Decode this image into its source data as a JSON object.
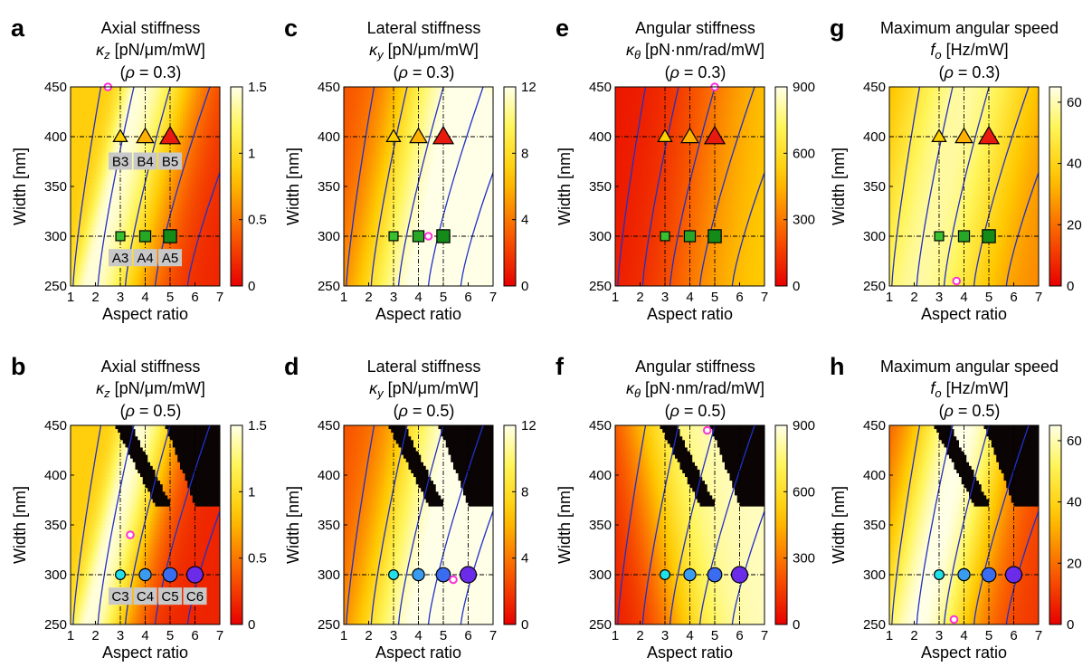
{
  "chart_data": [
    {
      "id": "a",
      "title": "Axial stiffness",
      "subtitle": "κz [pN/μm/mW]",
      "condition": "(ρ = 0.3)",
      "quantity": "axial",
      "rho": 0.3,
      "black_region": false,
      "type": "heatmap",
      "xlabel": "Aspect ratio",
      "ylabel": "Width [nm]",
      "xlim": [
        1,
        7
      ],
      "ylim": [
        250,
        450
      ],
      "xticks": [
        "1",
        "2",
        "3",
        "4",
        "5",
        "6",
        "7"
      ],
      "yticks": [
        "250",
        "300",
        "350",
        "400",
        "450"
      ],
      "colorbar": {
        "range": [
          0,
          1.5
        ],
        "ticks": [
          "0",
          "0.5",
          "1",
          "1.5"
        ],
        "colormap": "hot-to-white"
      },
      "markers": [
        {
          "x": 3,
          "y": 400,
          "shape": "triangle",
          "color": "#ffd000",
          "size": 9
        },
        {
          "x": 4,
          "y": 400,
          "shape": "triangle",
          "color": "#ffb000",
          "size": 11
        },
        {
          "x": 5,
          "y": 400,
          "shape": "triangle",
          "color": "#e81a10",
          "size": 13
        },
        {
          "x": 3,
          "y": 300,
          "shape": "square",
          "color": "#38c030",
          "size": 9
        },
        {
          "x": 4,
          "y": 300,
          "shape": "square",
          "color": "#26a826",
          "size": 11
        },
        {
          "x": 5,
          "y": 300,
          "shape": "square",
          "color": "#148a18",
          "size": 13
        }
      ],
      "marker_labels": [
        {
          "x": 3,
          "y": 375,
          "text": "B3"
        },
        {
          "x": 4,
          "y": 375,
          "text": "B4"
        },
        {
          "x": 5,
          "y": 375,
          "text": "B5"
        },
        {
          "x": 3,
          "y": 278,
          "text": "A3"
        },
        {
          "x": 4,
          "y": 278,
          "text": "A4"
        },
        {
          "x": 5,
          "y": 278,
          "text": "A5"
        }
      ],
      "optimum": {
        "x": 2.5,
        "y": 450
      },
      "dashed_x": [
        3,
        4,
        5
      ],
      "dashed_y": [
        300,
        400
      ]
    },
    {
      "id": "c",
      "title": "Lateral stiffness",
      "subtitle": "κy [pN/μm/mW]",
      "condition": "(ρ = 0.3)",
      "quantity": "lateral",
      "rho": 0.3,
      "black_region": false,
      "type": "heatmap",
      "xlabel": "Aspect ratio",
      "ylabel": "Width [nm]",
      "xlim": [
        1,
        7
      ],
      "ylim": [
        250,
        450
      ],
      "xticks": [
        "1",
        "2",
        "3",
        "4",
        "5",
        "6",
        "7"
      ],
      "yticks": [
        "250",
        "300",
        "350",
        "400",
        "450"
      ],
      "colorbar": {
        "range": [
          0,
          12
        ],
        "ticks": [
          "0",
          "4",
          "8",
          "12"
        ],
        "colormap": "hot-to-white"
      },
      "markers": [
        {
          "x": 3,
          "y": 400,
          "shape": "triangle",
          "color": "#ffd000",
          "size": 9
        },
        {
          "x": 4,
          "y": 400,
          "shape": "triangle",
          "color": "#ffb000",
          "size": 11
        },
        {
          "x": 5,
          "y": 400,
          "shape": "triangle",
          "color": "#e81a10",
          "size": 13
        },
        {
          "x": 3,
          "y": 300,
          "shape": "square",
          "color": "#38c030",
          "size": 9
        },
        {
          "x": 4,
          "y": 300,
          "shape": "square",
          "color": "#26a826",
          "size": 11
        },
        {
          "x": 5,
          "y": 300,
          "shape": "square",
          "color": "#148a18",
          "size": 13
        }
      ],
      "marker_labels": [],
      "optimum": {
        "x": 4.4,
        "y": 300
      },
      "dashed_x": [
        3,
        4,
        5
      ],
      "dashed_y": [
        300,
        400
      ]
    },
    {
      "id": "e",
      "title": "Angular stiffness",
      "subtitle": "κθ [pN·nm/rad/mW]",
      "condition": "(ρ = 0.3)",
      "quantity": "angular",
      "rho": 0.3,
      "black_region": false,
      "type": "heatmap",
      "xlabel": "Aspect ratio",
      "ylabel": "Width [nm]",
      "xlim": [
        1,
        7
      ],
      "ylim": [
        250,
        450
      ],
      "xticks": [
        "1",
        "2",
        "3",
        "4",
        "5",
        "6",
        "7"
      ],
      "yticks": [
        "250",
        "300",
        "350",
        "400",
        "450"
      ],
      "colorbar": {
        "range": [
          0,
          900
        ],
        "ticks": [
          "0",
          "300",
          "600",
          "900"
        ],
        "colormap": "hot-to-white"
      },
      "markers": [
        {
          "x": 3,
          "y": 400,
          "shape": "triangle",
          "color": "#ffd000",
          "size": 9
        },
        {
          "x": 4,
          "y": 400,
          "shape": "triangle",
          "color": "#ffb000",
          "size": 11
        },
        {
          "x": 5,
          "y": 400,
          "shape": "triangle",
          "color": "#e81a10",
          "size": 13
        },
        {
          "x": 3,
          "y": 300,
          "shape": "square",
          "color": "#38c030",
          "size": 9
        },
        {
          "x": 4,
          "y": 300,
          "shape": "square",
          "color": "#26a826",
          "size": 11
        },
        {
          "x": 5,
          "y": 300,
          "shape": "square",
          "color": "#148a18",
          "size": 13
        }
      ],
      "marker_labels": [],
      "optimum": {
        "x": 5,
        "y": 450
      },
      "dashed_x": [
        3,
        4,
        5
      ],
      "dashed_y": [
        300,
        400
      ]
    },
    {
      "id": "g",
      "title": "Maximum angular speed",
      "subtitle": "fo [Hz/mW]",
      "condition": "(ρ = 0.3)",
      "quantity": "speed",
      "rho": 0.3,
      "black_region": false,
      "type": "heatmap",
      "xlabel": "Aspect ratio",
      "ylabel": "Width [nm]",
      "xlim": [
        1,
        7
      ],
      "ylim": [
        250,
        450
      ],
      "xticks": [
        "1",
        "2",
        "3",
        "4",
        "5",
        "6",
        "7"
      ],
      "yticks": [
        "250",
        "300",
        "350",
        "400",
        "450"
      ],
      "colorbar": {
        "range": [
          0,
          65
        ],
        "ticks": [
          "0",
          "20",
          "40",
          "60"
        ],
        "colormap": "hot-to-white"
      },
      "markers": [
        {
          "x": 3,
          "y": 400,
          "shape": "triangle",
          "color": "#ffd000",
          "size": 9
        },
        {
          "x": 4,
          "y": 400,
          "shape": "triangle",
          "color": "#ffb000",
          "size": 11
        },
        {
          "x": 5,
          "y": 400,
          "shape": "triangle",
          "color": "#e81a10",
          "size": 13
        },
        {
          "x": 3,
          "y": 300,
          "shape": "square",
          "color": "#38c030",
          "size": 9
        },
        {
          "x": 4,
          "y": 300,
          "shape": "square",
          "color": "#26a826",
          "size": 11
        },
        {
          "x": 5,
          "y": 300,
          "shape": "square",
          "color": "#148a18",
          "size": 13
        }
      ],
      "marker_labels": [],
      "optimum": {
        "x": 3.7,
        "y": 255
      },
      "dashed_x": [
        3,
        4,
        5
      ],
      "dashed_y": [
        300,
        400
      ]
    },
    {
      "id": "b",
      "title": "Axial stiffness",
      "subtitle": "κz [pN/μm/mW]",
      "condition": "(ρ = 0.5)",
      "quantity": "axial",
      "rho": 0.5,
      "black_region": true,
      "type": "heatmap",
      "xlabel": "Aspect ratio",
      "ylabel": "Width [nm]",
      "xlim": [
        1,
        7
      ],
      "ylim": [
        250,
        450
      ],
      "xticks": [
        "1",
        "2",
        "3",
        "4",
        "5",
        "6",
        "7"
      ],
      "yticks": [
        "250",
        "300",
        "350",
        "400",
        "450"
      ],
      "colorbar": {
        "range": [
          0,
          1.5
        ],
        "ticks": [
          "0",
          "0.5",
          "1",
          "1.5"
        ],
        "colormap": "hot-to-white"
      },
      "markers": [
        {
          "x": 3,
          "y": 300,
          "shape": "circle",
          "color": "#22e0e8",
          "size": 9
        },
        {
          "x": 4,
          "y": 300,
          "shape": "circle",
          "color": "#3a9cf0",
          "size": 11
        },
        {
          "x": 5,
          "y": 300,
          "shape": "circle",
          "color": "#3a6cf0",
          "size": 13
        },
        {
          "x": 6,
          "y": 300,
          "shape": "circle",
          "color": "#6a2ce8",
          "size": 15
        }
      ],
      "marker_labels": [
        {
          "x": 3,
          "y": 278,
          "text": "C3"
        },
        {
          "x": 4,
          "y": 278,
          "text": "C4"
        },
        {
          "x": 5,
          "y": 278,
          "text": "C5"
        },
        {
          "x": 6,
          "y": 278,
          "text": "C6"
        }
      ],
      "optimum": {
        "x": 3.4,
        "y": 340
      },
      "dashed_x": [
        3,
        4,
        5,
        6
      ],
      "dashed_y": [
        300
      ]
    },
    {
      "id": "d",
      "title": "Lateral stiffness",
      "subtitle": "κy [pN/μm/mW]",
      "condition": "(ρ = 0.5)",
      "quantity": "lateral",
      "rho": 0.5,
      "black_region": true,
      "type": "heatmap",
      "xlabel": "Aspect ratio",
      "ylabel": "Width [nm]",
      "xlim": [
        1,
        7
      ],
      "ylim": [
        250,
        450
      ],
      "xticks": [
        "1",
        "2",
        "3",
        "4",
        "5",
        "6",
        "7"
      ],
      "yticks": [
        "250",
        "300",
        "350",
        "400",
        "450"
      ],
      "colorbar": {
        "range": [
          0,
          12
        ],
        "ticks": [
          "0",
          "4",
          "8",
          "12"
        ],
        "colormap": "hot-to-white"
      },
      "markers": [
        {
          "x": 3,
          "y": 300,
          "shape": "circle",
          "color": "#22e0e8",
          "size": 9
        },
        {
          "x": 4,
          "y": 300,
          "shape": "circle",
          "color": "#3a9cf0",
          "size": 11
        },
        {
          "x": 5,
          "y": 300,
          "shape": "circle",
          "color": "#3a6cf0",
          "size": 13
        },
        {
          "x": 6,
          "y": 300,
          "shape": "circle",
          "color": "#6a2ce8",
          "size": 15
        }
      ],
      "marker_labels": [],
      "optimum": {
        "x": 5.4,
        "y": 295
      },
      "dashed_x": [
        3,
        4,
        5,
        6
      ],
      "dashed_y": [
        300
      ]
    },
    {
      "id": "f",
      "title": "Angular stiffness",
      "subtitle": "κθ [pN·nm/rad/mW]",
      "condition": "(ρ = 0.5)",
      "quantity": "angular",
      "rho": 0.5,
      "black_region": true,
      "type": "heatmap",
      "xlabel": "Aspect ratio",
      "ylabel": "Width [nm]",
      "xlim": [
        1,
        7
      ],
      "ylim": [
        250,
        450
      ],
      "xticks": [
        "1",
        "2",
        "3",
        "4",
        "5",
        "6",
        "7"
      ],
      "yticks": [
        "250",
        "300",
        "350",
        "400",
        "450"
      ],
      "colorbar": {
        "range": [
          0,
          900
        ],
        "ticks": [
          "0",
          "300",
          "600",
          "900"
        ],
        "colormap": "hot-to-white"
      },
      "markers": [
        {
          "x": 3,
          "y": 300,
          "shape": "circle",
          "color": "#22e0e8",
          "size": 9
        },
        {
          "x": 4,
          "y": 300,
          "shape": "circle",
          "color": "#3a9cf0",
          "size": 11
        },
        {
          "x": 5,
          "y": 300,
          "shape": "circle",
          "color": "#3a6cf0",
          "size": 13
        },
        {
          "x": 6,
          "y": 300,
          "shape": "circle",
          "color": "#6a2ce8",
          "size": 15
        }
      ],
      "marker_labels": [],
      "optimum": {
        "x": 4.7,
        "y": 445
      },
      "dashed_x": [
        3,
        4,
        5,
        6
      ],
      "dashed_y": [
        300
      ]
    },
    {
      "id": "h",
      "title": "Maximum angular speed",
      "subtitle": "fo [Hz/mW]",
      "condition": "(ρ = 0.5)",
      "quantity": "speed",
      "rho": 0.5,
      "black_region": true,
      "type": "heatmap",
      "xlabel": "Aspect ratio",
      "ylabel": "Width [nm]",
      "xlim": [
        1,
        7
      ],
      "ylim": [
        250,
        450
      ],
      "xticks": [
        "1",
        "2",
        "3",
        "4",
        "5",
        "6",
        "7"
      ],
      "yticks": [
        "250",
        "300",
        "350",
        "400",
        "450"
      ],
      "colorbar": {
        "range": [
          0,
          65
        ],
        "ticks": [
          "0",
          "20",
          "40",
          "60"
        ],
        "colormap": "hot-to-white"
      },
      "markers": [
        {
          "x": 3,
          "y": 300,
          "shape": "circle",
          "color": "#22e0e8",
          "size": 9
        },
        {
          "x": 4,
          "y": 300,
          "shape": "circle",
          "color": "#3a9cf0",
          "size": 11
        },
        {
          "x": 5,
          "y": 300,
          "shape": "circle",
          "color": "#3a6cf0",
          "size": 13
        },
        {
          "x": 6,
          "y": 300,
          "shape": "circle",
          "color": "#6a2ce8",
          "size": 15
        }
      ],
      "marker_labels": [],
      "optimum": {
        "x": 3.6,
        "y": 255
      },
      "dashed_x": [
        3,
        4,
        5,
        6
      ],
      "dashed_y": [
        300
      ]
    }
  ],
  "style": {
    "contour_color": "#2030c8",
    "optimum_color": "#ff30d8",
    "black_region_color": "#0a0404",
    "label_box_color": "#c8c8c8",
    "marker_edge": "#000000"
  }
}
